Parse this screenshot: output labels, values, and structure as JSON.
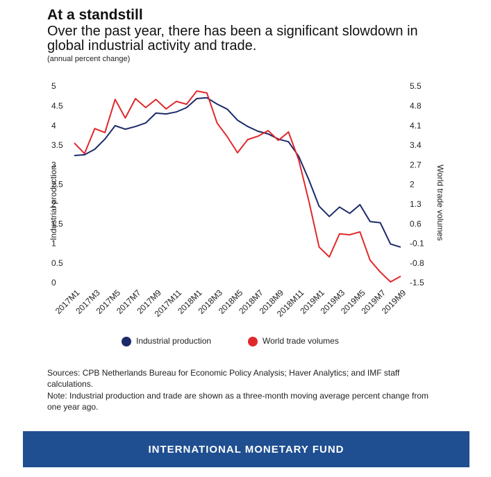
{
  "chart_data": {
    "type": "line",
    "title": "At a standstill",
    "subtitle": "Over the past year, there has been a significant slowdown in global industrial activity and trade.",
    "unit_note": "(annual percent change)",
    "ylabel": "Industrial production",
    "y2label": "World trade volumes",
    "categories": [
      "2017M1",
      null,
      "2017M3",
      null,
      "2017M5",
      null,
      "2017M7",
      null,
      "2017M9",
      null,
      "2017M11",
      null,
      "2018M1",
      null,
      "2018M3",
      null,
      "2018M5",
      null,
      "2018M7",
      null,
      "2018M9",
      null,
      "2018M11",
      null,
      "2019M1",
      null,
      "2019M3",
      null,
      "2019M5",
      null,
      "2019M7",
      null,
      "2019M9"
    ],
    "series": [
      {
        "name": "Industrial production",
        "color": "#1b2a6b",
        "axis": "y",
        "values": [
          3.25,
          3.27,
          3.41,
          3.67,
          4.01,
          3.92,
          3.99,
          4.08,
          4.33,
          4.31,
          4.36,
          4.47,
          4.7,
          4.72,
          4.56,
          4.43,
          4.15,
          3.99,
          3.87,
          3.8,
          3.67,
          3.6,
          3.23,
          2.63,
          1.96,
          1.7,
          1.94,
          1.78,
          2.0,
          1.57,
          1.54,
          1.0,
          0.92
        ]
      },
      {
        "name": "World trade volumes",
        "color": "#e0282b",
        "axis": "y2",
        "values": [
          3.5,
          3.12,
          4.01,
          3.87,
          5.05,
          4.39,
          5.08,
          4.76,
          5.05,
          4.71,
          4.98,
          4.88,
          5.35,
          5.28,
          4.21,
          3.72,
          3.15,
          3.62,
          3.74,
          3.94,
          3.59,
          3.89,
          2.9,
          1.42,
          -0.21,
          -0.56,
          0.26,
          0.23,
          0.33,
          -0.68,
          -1.1,
          -1.45,
          -1.25
        ]
      }
    ],
    "ylim": [
      0,
      5
    ],
    "yticks": [
      0,
      0.5,
      1,
      1.5,
      2,
      2.5,
      3,
      3.5,
      4,
      4.5,
      5
    ],
    "y2lim": [
      -1.5,
      5.5
    ],
    "y2ticks": [
      -1.5,
      -0.8,
      -0.1,
      0.6,
      1.3,
      2,
      2.7,
      3.4,
      4.1,
      4.8,
      5.5
    ],
    "grid": false,
    "legend": "bottom"
  },
  "footer": {
    "sources": "Sources: CPB Netherlands Bureau for Economic Policy Analysis; Haver Analytics; and IMF staff calculations.",
    "note": "Note: Industrial production and trade are shown as a three-month moving average percent change from one year ago.",
    "banner": "INTERNATIONAL MONETARY FUND"
  }
}
